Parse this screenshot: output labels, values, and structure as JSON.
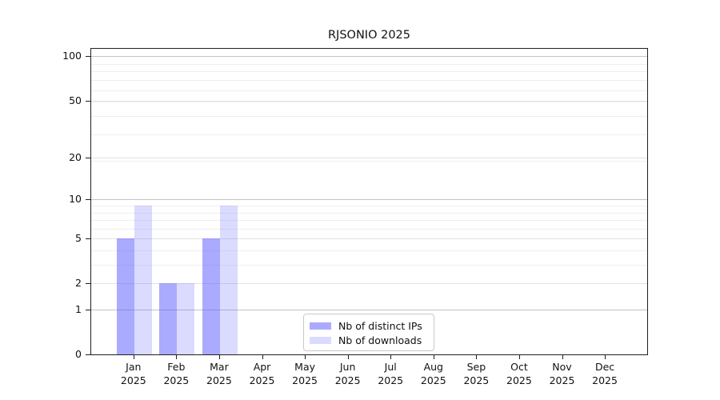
{
  "title": "RJSONIO 2025",
  "year_label": "2025",
  "chart_data": {
    "type": "bar",
    "title": "RJSONIO 2025",
    "categories": [
      "Jan",
      "Feb",
      "Mar",
      "Apr",
      "May",
      "Jun",
      "Jul",
      "Aug",
      "Sep",
      "Oct",
      "Nov",
      "Dec"
    ],
    "category_year": "2025",
    "series": [
      {
        "name": "Nb of distinct IPs",
        "color": "rgba(85,85,255,0.50)",
        "solid_color": "#aaaaff",
        "values": [
          5,
          2,
          5,
          0,
          0,
          0,
          0,
          0,
          0,
          0,
          0,
          0
        ]
      },
      {
        "name": "Nb of downloads",
        "color": "rgba(85,85,255,0.21)",
        "solid_color": "#ddddff",
        "values": [
          9,
          2,
          9,
          0,
          0,
          0,
          0,
          0,
          0,
          0,
          0,
          0
        ]
      }
    ],
    "xlabel": "",
    "ylabel": "",
    "y_scale": "log10(value+1)",
    "ylim": [
      0,
      114
    ],
    "y_tick_values": [
      0,
      1,
      2,
      5,
      10,
      20,
      50,
      100
    ],
    "y_tick_labels": [
      "0",
      "1",
      "2",
      "5",
      "10",
      "20",
      "50",
      "100"
    ],
    "gridlines": {
      "major_dark_values": [
        1,
        10,
        100
      ],
      "major_light_values": [
        2,
        5,
        20,
        50
      ],
      "minor_values": [
        3,
        4,
        6,
        7,
        8,
        9,
        19,
        29,
        39,
        49,
        59,
        69,
        79,
        89
      ]
    },
    "grid": "horizontal, major + minor, on",
    "legend_position": "inside bottom-center",
    "legend": {
      "items": [
        {
          "label": "Nb of distinct IPs",
          "color": "rgba(85,85,255,0.50)"
        },
        {
          "label": "Nb of downloads",
          "color": "rgba(85,85,255,0.21)"
        }
      ]
    }
  }
}
